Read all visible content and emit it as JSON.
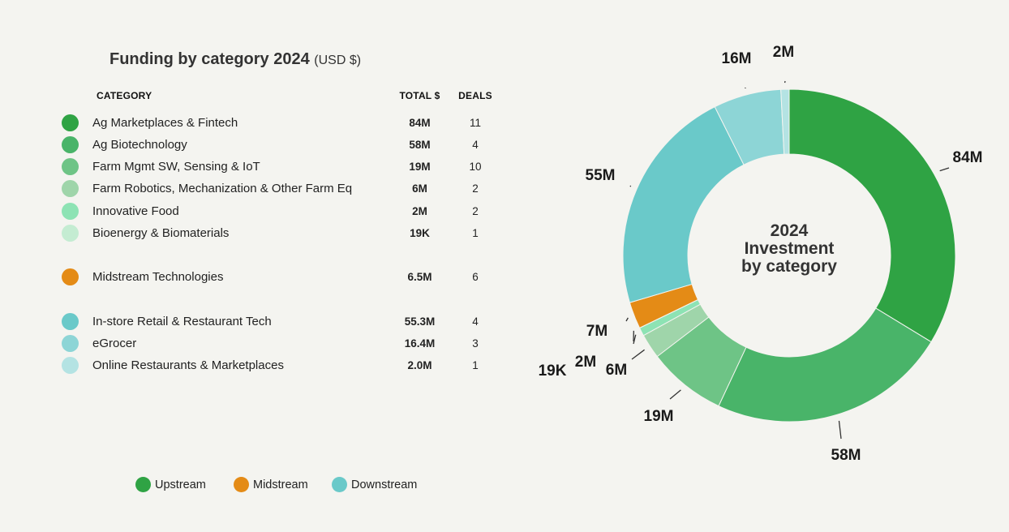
{
  "title": {
    "main": "Funding by category 2024",
    "unit": "(USD $)"
  },
  "table": {
    "headers": {
      "category": "CATEGORY",
      "total": "TOTAL $",
      "deals": "DEALS"
    },
    "rows": [
      {
        "category": "Ag Marketplaces & Fintech",
        "total": "84M",
        "deals": "11",
        "color": "#2fa344"
      },
      {
        "category": "Ag Biotechnology",
        "total": "58M",
        "deals": "4",
        "color": "#49b469"
      },
      {
        "category": "Farm Mgmt SW, Sensing & IoT",
        "total": "19M",
        "deals": "10",
        "color": "#6ec486"
      },
      {
        "category": "Farm Robotics, Mechanization & Other Farm Eq",
        "total": "6M",
        "deals": "2",
        "color": "#9fd5aa"
      },
      {
        "category": "Innovative Food",
        "total": "2M",
        "deals": "2",
        "color": "#8de3b4"
      },
      {
        "category": "Bioenergy & Biomaterials",
        "total": "19K",
        "deals": "1",
        "color": "#c4ecd2"
      },
      {
        "category": "Midstream Technologies",
        "total": "6.5M",
        "deals": "6",
        "color": "#e48b16"
      },
      {
        "category": "In-store Retail & Restaurant Tech",
        "total": "55.3M",
        "deals": "4",
        "color": "#6ac9c9"
      },
      {
        "category": "eGrocer",
        "total": "16.4M",
        "deals": "3",
        "color": "#8dd5d6"
      },
      {
        "category": "Online Restaurants & Marketplaces",
        "total": "2.0M",
        "deals": "1",
        "color": "#b4e3e3"
      }
    ]
  },
  "legend": [
    {
      "label": "Upstream",
      "color": "#2fa344"
    },
    {
      "label": "Midstream",
      "color": "#e48b16"
    },
    {
      "label": "Downstream",
      "color": "#6ac9c9"
    }
  ],
  "chart_data": {
    "type": "pie",
    "donut": true,
    "center_text": [
      "2024",
      "Investment",
      "by category"
    ],
    "slices": [
      {
        "name": "Ag Marketplaces & Fintech",
        "value": 84,
        "label": "84M",
        "color": "#2fa344"
      },
      {
        "name": "Ag Biotechnology",
        "value": 58,
        "label": "58M",
        "color": "#49b469"
      },
      {
        "name": "Farm Mgmt SW, Sensing & IoT",
        "value": 19,
        "label": "19M",
        "color": "#6ec486"
      },
      {
        "name": "Farm Robotics, Mechanization & Other Farm Eq",
        "value": 6,
        "label": "6M",
        "color": "#9fd5aa"
      },
      {
        "name": "Innovative Food",
        "value": 2,
        "label": "2M",
        "color": "#8de3b4"
      },
      {
        "name": "Bioenergy & Biomaterials",
        "value": 0.019,
        "label": "19K",
        "color": "#c4ecd2"
      },
      {
        "name": "Midstream Technologies",
        "value": 6.5,
        "label": "7M",
        "color": "#e48b16"
      },
      {
        "name": "In-store Retail & Restaurant Tech",
        "value": 55.3,
        "label": "55M",
        "color": "#6ac9c9"
      },
      {
        "name": "eGrocer",
        "value": 16.4,
        "label": "16M",
        "color": "#8dd5d6"
      },
      {
        "name": "Online Restaurants & Marketplaces",
        "value": 2.0,
        "label": "2M",
        "color": "#b4e3e3"
      }
    ]
  }
}
